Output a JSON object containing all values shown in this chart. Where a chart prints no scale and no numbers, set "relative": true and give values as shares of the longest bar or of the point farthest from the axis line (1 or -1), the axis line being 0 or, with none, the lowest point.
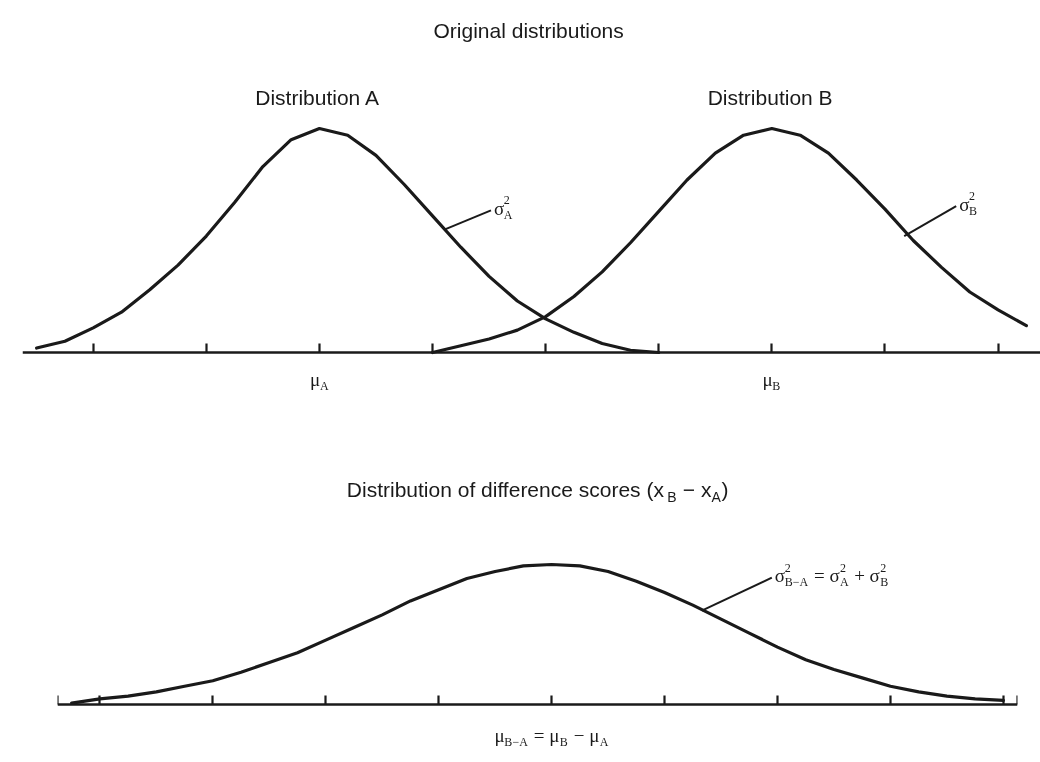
{
  "chart_data": [
    {
      "type": "line",
      "title": "Original distributions",
      "relative": true,
      "grid": false,
      "line_style": "solid",
      "categories": [
        null,
        null,
        null,
        null,
        null,
        null,
        null,
        null,
        null,
        null,
        "μ$_{A}$",
        null,
        null,
        null,
        null,
        null,
        null,
        null,
        null,
        null,
        null,
        null,
        null,
        null,
        null,
        null,
        "μ$_{B}$",
        null,
        null,
        null,
        null,
        null,
        null,
        null,
        null,
        null
      ],
      "series": [
        {
          "name": "Distribution A",
          "color": "#1a1a1a",
          "values": [
            0.02,
            0.05,
            0.11,
            0.18,
            0.28,
            0.39,
            0.52,
            0.67,
            0.83,
            0.95,
            1,
            0.97,
            0.88,
            0.75,
            0.61,
            0.47,
            0.34,
            0.23,
            0.15,
            0.09,
            0.04,
            0.01,
            0,
            null,
            null,
            null,
            null,
            null,
            null,
            null,
            null,
            null,
            null,
            null,
            null,
            null
          ]
        },
        {
          "name": "Distribution B",
          "color": "#1a1a1a",
          "values": [
            null,
            null,
            null,
            null,
            null,
            null,
            null,
            null,
            null,
            null,
            null,
            null,
            null,
            null,
            0,
            0.03,
            0.06,
            0.1,
            0.16,
            0.25,
            0.36,
            0.49,
            0.63,
            0.77,
            0.89,
            0.97,
            1,
            0.97,
            0.89,
            0.77,
            0.64,
            0.5,
            0.38,
            0.27,
            0.19,
            0.12
          ]
        }
      ],
      "annotations": [
        "σ$_{A}$$^{2}$",
        "σ$_{B}$$^{2}$"
      ]
    },
    {
      "type": "line",
      "title": "Distribution of difference scores (x$_{B}$ − x$_{A}$)",
      "relative": true,
      "grid": false,
      "line_style": "solid",
      "categories": [
        null,
        null,
        null,
        null,
        null,
        null,
        null,
        null,
        null,
        null,
        null,
        null,
        null,
        null,
        null,
        null,
        null,
        null,
        null,
        null,
        null,
        null,
        null,
        null,
        null,
        null,
        null,
        null,
        null,
        null,
        null,
        null,
        null,
        null
      ],
      "color": "#1a1a1a",
      "values": [
        0.01,
        0.04,
        0.06,
        0.09,
        0.13,
        0.17,
        0.23,
        0.3,
        0.37,
        0.46,
        0.55,
        0.64,
        0.74,
        0.82,
        0.9,
        0.95,
        0.99,
        1,
        0.99,
        0.95,
        0.88,
        0.8,
        0.71,
        0.61,
        0.51,
        0.41,
        0.32,
        0.25,
        0.19,
        0.13,
        0.09,
        0.06,
        0.04,
        0.03
      ],
      "annotations": [
        "σ$_{B−A}$$^{2}$ = σ$_{A}$$^{2}$ + σ$_{B}$$^{2}$",
        "μ$_{B−A}$ = μ$_{B}$ − μ$_{A}$"
      ]
    }
  ]
}
